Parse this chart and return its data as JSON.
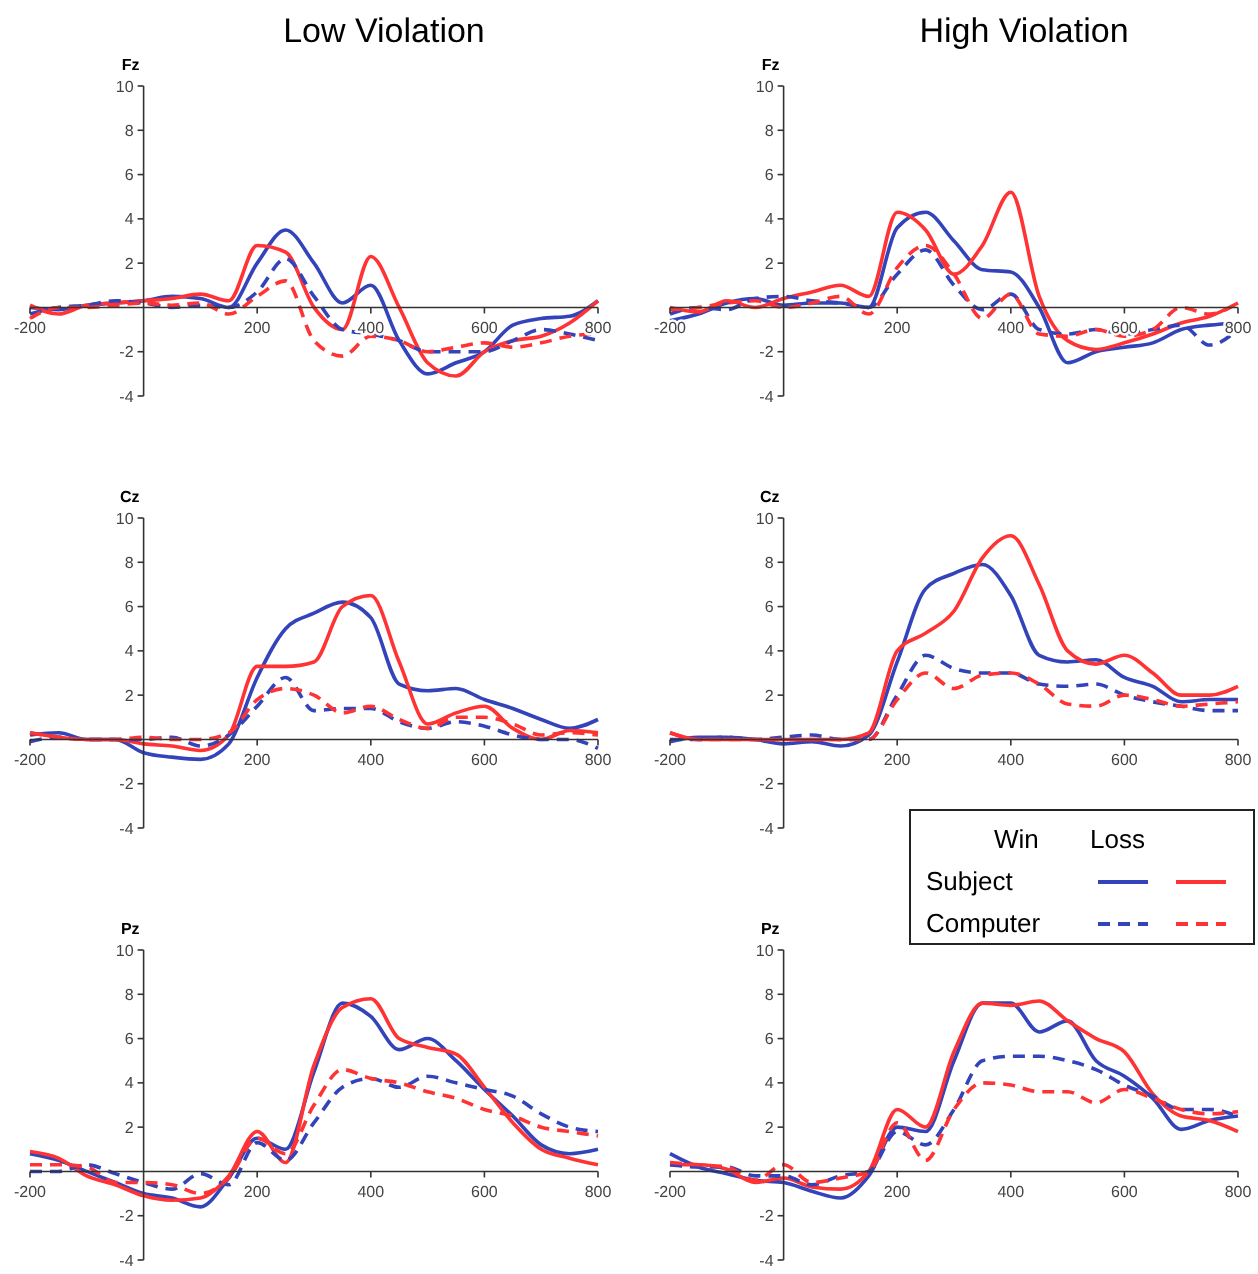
{
  "chart_data": [
    {
      "type": "line",
      "title": "Low Violation",
      "ylabel": "Fz",
      "x": [
        -200,
        -150,
        -100,
        -50,
        0,
        50,
        100,
        150,
        200,
        250,
        300,
        350,
        400,
        450,
        500,
        550,
        600,
        650,
        700,
        750,
        800
      ],
      "xlim": [
        -200,
        800
      ],
      "xticks": [
        -200,
        200,
        400,
        600,
        800
      ],
      "ylim": [
        -4,
        10
      ],
      "yticks": [
        -4,
        -2,
        2,
        4,
        6,
        8,
        10
      ],
      "series": [
        {
          "color": "#3344bb",
          "line_style": "solid",
          "values": [
            0,
            -0.1,
            0.1,
            0.2,
            0.3,
            0.5,
            0.4,
            0,
            2.0,
            3.5,
            2.0,
            0.2,
            1.0,
            -1.5,
            -3.0,
            -2.5,
            -2.0,
            -0.8,
            -0.5,
            -0.4,
            0.3
          ]
        },
        {
          "color": "#ff3333",
          "line_style": "solid",
          "values": [
            0.1,
            -0.3,
            0.1,
            0.2,
            0.3,
            0.4,
            0.6,
            0.3,
            2.8,
            2.5,
            0,
            -1.0,
            2.3,
            0,
            -2.5,
            -3.1,
            -2.0,
            -1.5,
            -1.3,
            -0.7,
            0.3
          ]
        },
        {
          "color": "#3344bb",
          "line_style": "dashed",
          "values": [
            -0.3,
            0,
            0.1,
            0.3,
            0.2,
            0,
            0.1,
            0,
            0.7,
            2.2,
            0.5,
            -1.0,
            -1.2,
            -1.5,
            -2.0,
            -2.0,
            -2.0,
            -1.5,
            -1.0,
            -1.2,
            -1.5
          ]
        },
        {
          "color": "#ff3333",
          "line_style": "dashed",
          "values": [
            -0.5,
            0,
            0,
            0.1,
            0.2,
            0.1,
            0.2,
            -0.3,
            0.5,
            1.2,
            -1.5,
            -2.2,
            -1.3,
            -1.5,
            -2.0,
            -1.8,
            -1.6,
            -1.8,
            -1.6,
            -1.3,
            -1.2
          ]
        }
      ]
    },
    {
      "type": "line",
      "title": "High Violation",
      "ylabel": "Fz",
      "x": [
        -200,
        -150,
        -100,
        -50,
        0,
        50,
        100,
        150,
        200,
        250,
        300,
        350,
        400,
        450,
        500,
        550,
        600,
        650,
        700,
        750,
        800
      ],
      "xlim": [
        -200,
        800
      ],
      "xticks": [
        -200,
        200,
        400,
        600,
        800
      ],
      "ylim": [
        -4,
        10
      ],
      "yticks": [
        -4,
        -2,
        2,
        4,
        6,
        8,
        10
      ],
      "series": [
        {
          "color": "#3344bb",
          "line_style": "solid",
          "values": [
            -0.6,
            -0.3,
            0.2,
            0.4,
            0.1,
            0.2,
            0.2,
            0,
            3.6,
            4.3,
            3.0,
            1.7,
            1.6,
            0,
            -2.5,
            -2.0,
            -1.8,
            -1.6,
            -1.0,
            -0.8,
            -0.7
          ]
        },
        {
          "color": "#ff3333",
          "line_style": "solid",
          "values": [
            0,
            -0.2,
            0.3,
            0,
            0.4,
            0.7,
            1.0,
            0.5,
            4.3,
            3.5,
            1.5,
            2.8,
            5.2,
            0.5,
            -1.5,
            -1.9,
            -1.6,
            -1.2,
            -0.7,
            -0.4,
            0.2
          ]
        },
        {
          "color": "#3344bb",
          "line_style": "dashed",
          "values": [
            -0.3,
            0,
            -0.1,
            0.4,
            0.5,
            0.3,
            0.2,
            0,
            1.5,
            2.6,
            1.0,
            -0.1,
            0.6,
            -1.0,
            -1.2,
            -1.0,
            -1.2,
            -1.0,
            -0.8,
            -1.7,
            -1.0
          ]
        },
        {
          "color": "#ff3333",
          "line_style": "dashed",
          "values": [
            -0.1,
            0,
            0.2,
            0.3,
            0,
            0.2,
            0.5,
            -0.3,
            1.8,
            2.8,
            1.5,
            -0.5,
            0.6,
            -1.2,
            -1.3,
            -1.0,
            -1.3,
            -1.0,
            0,
            -0.3,
            0.2
          ]
        }
      ]
    },
    {
      "type": "line",
      "ylabel": "Cz",
      "x": [
        -200,
        -150,
        -100,
        -50,
        0,
        50,
        100,
        150,
        200,
        250,
        300,
        350,
        400,
        450,
        500,
        550,
        600,
        650,
        700,
        750,
        800
      ],
      "xlim": [
        -200,
        800
      ],
      "xticks": [
        -200,
        200,
        400,
        600,
        800
      ],
      "ylim": [
        -4,
        10
      ],
      "yticks": [
        -4,
        -2,
        2,
        4,
        6,
        8,
        10
      ],
      "series": [
        {
          "color": "#3344bb",
          "line_style": "solid",
          "values": [
            0.2,
            0.3,
            0,
            0,
            -0.6,
            -0.8,
            -0.9,
            -0.2,
            2.8,
            5.0,
            5.7,
            6.2,
            5.5,
            2.5,
            2.2,
            2.3,
            1.8,
            1.4,
            0.9,
            0.5,
            0.9
          ]
        },
        {
          "color": "#ff3333",
          "line_style": "solid",
          "values": [
            0.3,
            0.1,
            0,
            0,
            -0.2,
            -0.3,
            -0.5,
            0.2,
            3.3,
            3.3,
            3.5,
            6.0,
            6.5,
            3.5,
            0.7,
            1.2,
            1.5,
            0.5,
            0,
            0.4,
            0.3
          ]
        },
        {
          "color": "#3344bb",
          "line_style": "dashed",
          "values": [
            -0.1,
            0.1,
            0,
            0,
            0,
            0.1,
            -0.3,
            0.2,
            1.5,
            2.8,
            1.3,
            1.4,
            1.4,
            0.8,
            0.5,
            0.8,
            0.6,
            0.2,
            0,
            0,
            -0.4
          ]
        },
        {
          "color": "#ff3333",
          "line_style": "dashed",
          "values": [
            0.3,
            0.1,
            0,
            0,
            0.1,
            0,
            0,
            0.3,
            1.8,
            2.3,
            2.0,
            1.2,
            1.5,
            0.9,
            0.5,
            1.0,
            1.0,
            0.7,
            0.2,
            0.3,
            0.2
          ]
        }
      ]
    },
    {
      "type": "line",
      "ylabel": "Cz",
      "x": [
        -200,
        -150,
        -100,
        -50,
        0,
        50,
        100,
        150,
        200,
        250,
        300,
        350,
        400,
        450,
        500,
        550,
        600,
        650,
        700,
        750,
        800
      ],
      "xlim": [
        -200,
        800
      ],
      "xticks": [
        -200,
        200,
        400,
        600,
        800
      ],
      "ylim": [
        -4,
        10
      ],
      "yticks": [
        -4,
        -2,
        2,
        4,
        6,
        8,
        10
      ],
      "series": [
        {
          "color": "#3344bb",
          "line_style": "solid",
          "values": [
            -0.1,
            0.1,
            0.1,
            0,
            -0.2,
            -0.1,
            -0.3,
            0.2,
            3.5,
            6.8,
            7.5,
            7.9,
            6.5,
            3.8,
            3.5,
            3.6,
            2.8,
            2.4,
            1.7,
            1.8,
            1.8
          ]
        },
        {
          "color": "#ff3333",
          "line_style": "solid",
          "values": [
            0.3,
            0,
            0,
            0,
            0,
            0,
            0,
            0.3,
            4.0,
            4.8,
            5.8,
            8.2,
            9.2,
            7.0,
            4.0,
            3.4,
            3.8,
            3.0,
            2.0,
            2.0,
            2.4
          ]
        },
        {
          "color": "#3344bb",
          "line_style": "dashed",
          "values": [
            0,
            0,
            0.1,
            0,
            0.1,
            0.2,
            0,
            0,
            2.0,
            3.8,
            3.2,
            3.0,
            3.0,
            2.5,
            2.4,
            2.5,
            2.0,
            1.7,
            1.5,
            1.3,
            1.3
          ]
        },
        {
          "color": "#ff3333",
          "line_style": "dashed",
          "values": [
            0.3,
            0,
            0,
            0,
            0,
            0,
            0,
            0,
            1.8,
            3.0,
            2.3,
            2.9,
            3.0,
            2.5,
            1.6,
            1.5,
            2.0,
            1.8,
            1.5,
            1.6,
            1.7
          ]
        }
      ]
    },
    {
      "type": "line",
      "ylabel": "Pz",
      "x": [
        -200,
        -150,
        -100,
        -50,
        0,
        50,
        100,
        150,
        200,
        250,
        300,
        350,
        400,
        450,
        500,
        550,
        600,
        650,
        700,
        750,
        800
      ],
      "xlim": [
        -200,
        800
      ],
      "xticks": [
        -200,
        200,
        400,
        600,
        800
      ],
      "ylim": [
        -4,
        10
      ],
      "yticks": [
        -4,
        -2,
        2,
        4,
        6,
        8,
        10
      ],
      "series": [
        {
          "color": "#3344bb",
          "line_style": "solid",
          "values": [
            0.8,
            0.5,
            0,
            -0.5,
            -1.0,
            -1.2,
            -1.6,
            -0.3,
            1.5,
            1.0,
            4.5,
            7.6,
            7.0,
            5.5,
            6.0,
            5.0,
            3.7,
            2.5,
            1.2,
            0.8,
            1.0
          ]
        },
        {
          "color": "#ff3333",
          "line_style": "solid",
          "values": [
            0.9,
            0.6,
            -0.2,
            -0.6,
            -1.1,
            -1.3,
            -1.2,
            -0.2,
            1.8,
            0.4,
            4.8,
            7.4,
            7.8,
            6.0,
            5.6,
            5.3,
            3.8,
            2.2,
            1.0,
            0.6,
            0.3
          ]
        },
        {
          "color": "#3344bb",
          "line_style": "dashed",
          "values": [
            0,
            0,
            0.3,
            -0.1,
            -0.5,
            -0.8,
            -0.1,
            -0.6,
            1.3,
            0.5,
            2.2,
            3.8,
            4.2,
            3.8,
            4.3,
            4.0,
            3.7,
            3.4,
            2.6,
            2.0,
            1.8
          ]
        },
        {
          "color": "#ff3333",
          "line_style": "dashed",
          "values": [
            0.3,
            0.3,
            0.2,
            -0.5,
            -0.5,
            -0.6,
            -1.0,
            -0.3,
            1.5,
            0.8,
            3.0,
            4.6,
            4.2,
            4.0,
            3.6,
            3.3,
            2.8,
            2.5,
            2.0,
            1.8,
            1.6
          ]
        }
      ]
    },
    {
      "type": "line",
      "ylabel": "Pz",
      "x": [
        -200,
        -150,
        -100,
        -50,
        0,
        50,
        100,
        150,
        200,
        250,
        300,
        350,
        400,
        450,
        500,
        550,
        600,
        650,
        700,
        750,
        800
      ],
      "xlim": [
        -200,
        800
      ],
      "xticks": [
        -200,
        200,
        400,
        600,
        800
      ],
      "ylim": [
        -4,
        10
      ],
      "yticks": [
        -4,
        -2,
        2,
        4,
        6,
        8,
        10
      ],
      "series": [
        {
          "color": "#3344bb",
          "line_style": "solid",
          "values": [
            0.8,
            0.2,
            -0.1,
            -0.4,
            -0.5,
            -0.9,
            -1.2,
            -0.2,
            2.0,
            1.8,
            5.0,
            7.6,
            7.6,
            6.3,
            6.8,
            5.0,
            4.3,
            3.3,
            1.9,
            2.3,
            2.5
          ]
        },
        {
          "color": "#ff3333",
          "line_style": "solid",
          "values": [
            0.3,
            0.3,
            0.1,
            -0.5,
            -0.3,
            -0.7,
            -0.8,
            0,
            2.8,
            2.0,
            5.4,
            7.6,
            7.5,
            7.7,
            6.8,
            6.0,
            5.4,
            3.5,
            2.5,
            2.3,
            1.8
          ]
        },
        {
          "color": "#3344bb",
          "line_style": "dashed",
          "values": [
            0.3,
            0.2,
            0.2,
            -0.2,
            -0.2,
            -0.6,
            -0.2,
            0,
            1.8,
            1.2,
            2.8,
            5.0,
            5.2,
            5.2,
            5.0,
            4.6,
            3.9,
            3.4,
            2.8,
            2.8,
            2.5
          ]
        },
        {
          "color": "#ff3333",
          "line_style": "dashed",
          "values": [
            0.4,
            0.3,
            0.2,
            -0.4,
            0.3,
            -0.5,
            -0.3,
            0,
            2.2,
            0.5,
            2.8,
            4.0,
            3.9,
            3.6,
            3.6,
            3.1,
            3.7,
            3.3,
            2.8,
            2.6,
            2.7
          ]
        }
      ]
    },
    {
      "type": "other",
      "annotations": [
        "Win",
        "Loss",
        "Subject",
        "Computer"
      ]
    }
  ]
}
